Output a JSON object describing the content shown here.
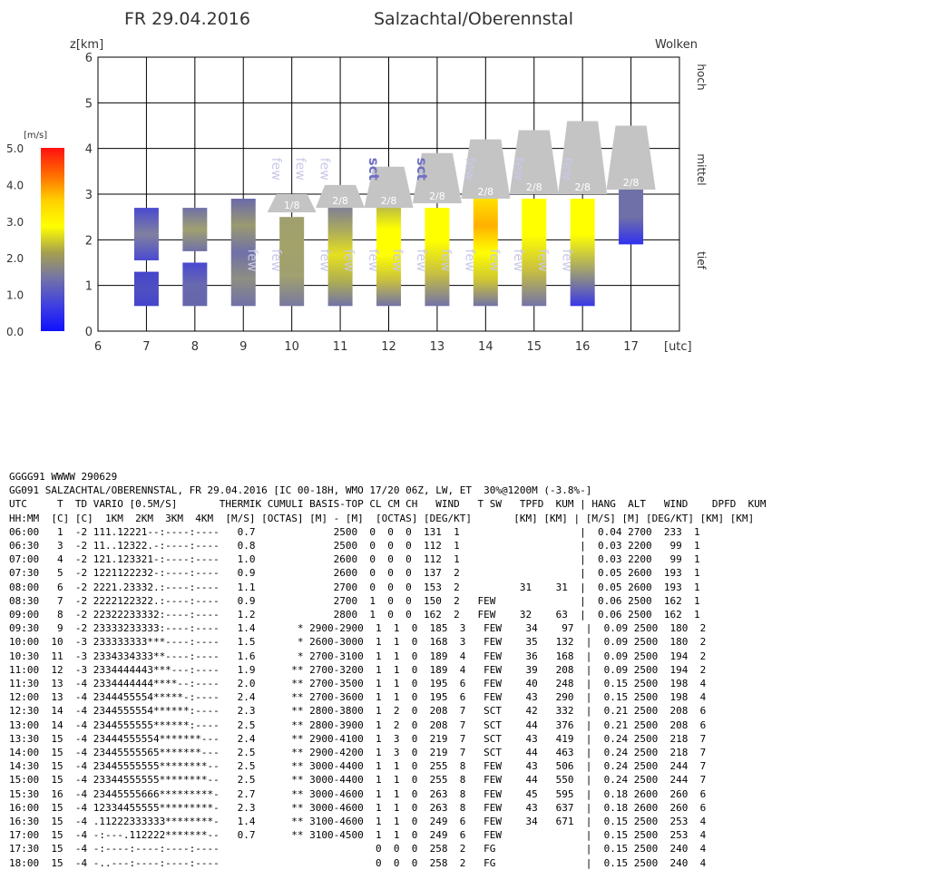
{
  "header": {
    "date": "FR 29.04.2016",
    "location": "Salzachtal/Oberennstal"
  },
  "chart_data": {
    "type": "bar",
    "ylabel": "z[km]",
    "xlabel_unit": "[utc]",
    "right_label": "Wolken",
    "layer_labels": [
      "hoch",
      "mittel",
      "tief"
    ],
    "xlim": [
      6,
      18
    ],
    "ylim": [
      0,
      6
    ],
    "x_ticks": [
      6,
      7,
      8,
      9,
      10,
      11,
      12,
      13,
      14,
      15,
      16,
      17
    ],
    "y_ticks": [
      0,
      1,
      2,
      3,
      4,
      5,
      6
    ],
    "grid": true,
    "colorbar": {
      "unit": "[m/s]",
      "ticks": [
        "5.0",
        "4.0",
        "3.0",
        "2.0",
        "1.0",
        "0.0"
      ],
      "range": [
        0,
        5
      ],
      "colors": [
        "#ff1010",
        "#ff6a00",
        "#ffd000",
        "#ffff00",
        "#a6a050",
        "#7272a8",
        "#4040e0",
        "#1010ff"
      ]
    },
    "thermal_columns": [
      {
        "x": 7,
        "segments": [
          {
            "bottom": 0.55,
            "top": 1.3,
            "colors": [
              "#4444cc",
              "#5050c0",
              "#4444cc"
            ]
          },
          {
            "bottom": 1.55,
            "top": 2.7,
            "colors": [
              "#4a4ad0",
              "#8080a0",
              "#4a4ad0"
            ]
          }
        ]
      },
      {
        "x": 8,
        "segments": [
          {
            "bottom": 0.55,
            "top": 1.5,
            "colors": [
              "#6666aa",
              "#6868b0",
              "#4848d0"
            ]
          },
          {
            "bottom": 1.75,
            "top": 2.7,
            "colors": [
              "#7070a8",
              "#a0a070",
              "#7070a8"
            ]
          }
        ]
      },
      {
        "x": 9,
        "segments": [
          {
            "bottom": 0.55,
            "top": 2.9,
            "colors": [
              "#7070a8",
              "#8e8e82",
              "#7070a8",
              "#9a9a70",
              "#6a6aaa"
            ]
          }
        ]
      },
      {
        "x": 10,
        "segments": [
          {
            "bottom": 0.55,
            "top": 2.5,
            "colors": [
              "#7878a0",
              "#a0a070",
              "#a2a26a",
              "#a0a070"
            ]
          }
        ]
      },
      {
        "x": 11,
        "segments": [
          {
            "bottom": 0.55,
            "top": 2.8,
            "colors": [
              "#7272a8",
              "#b0b050",
              "#e6e020",
              "#a8a860",
              "#7878a0"
            ]
          }
        ]
      },
      {
        "x": 12,
        "segments": [
          {
            "bottom": 0.55,
            "top": 2.8,
            "colors": [
              "#7272a8",
              "#c8c040",
              "#ffff00",
              "#ffff00",
              "#b0b050"
            ]
          }
        ]
      },
      {
        "x": 13,
        "segments": [
          {
            "bottom": 0.55,
            "top": 2.7,
            "colors": [
              "#7272a8",
              "#c8c040",
              "#ffff00",
              "#ffff00"
            ]
          }
        ]
      },
      {
        "x": 14,
        "segments": [
          {
            "bottom": 0.55,
            "top": 2.9,
            "colors": [
              "#7272a8",
              "#d0c830",
              "#ffff00",
              "#ffb000",
              "#ffe000"
            ]
          }
        ]
      },
      {
        "x": 15,
        "segments": [
          {
            "bottom": 0.55,
            "top": 2.9,
            "colors": [
              "#7272a8",
              "#c8c040",
              "#ffff00",
              "#ffff00"
            ]
          }
        ]
      },
      {
        "x": 16,
        "segments": [
          {
            "bottom": 0.55,
            "top": 2.9,
            "colors": [
              "#3838e8",
              "#a0a070",
              "#ffff00",
              "#ffff00"
            ]
          }
        ]
      },
      {
        "x": 17,
        "segments": [
          {
            "bottom": 1.9,
            "top": 3.1,
            "colors": [
              "#3030f0",
              "#7070a8",
              "#7070a8"
            ]
          }
        ]
      }
    ],
    "clouds": [
      {
        "x": 10,
        "base": 2.6,
        "top": 3.0,
        "label": "1/8"
      },
      {
        "x": 11,
        "base": 2.7,
        "top": 3.2,
        "label": "2/8"
      },
      {
        "x": 12,
        "base": 2.7,
        "top": 3.6,
        "label": "2/8"
      },
      {
        "x": 13,
        "base": 2.8,
        "top": 3.9,
        "label": "2/8"
      },
      {
        "x": 14,
        "base": 2.9,
        "top": 4.2,
        "label": "2/8"
      },
      {
        "x": 15,
        "base": 3.0,
        "top": 4.4,
        "label": "2/8"
      },
      {
        "x": 16,
        "base": 3.0,
        "top": 4.6,
        "label": "2/8"
      },
      {
        "x": 17,
        "base": 3.1,
        "top": 4.5,
        "label": "2/8"
      }
    ],
    "cloud_type_labels": [
      {
        "x": 9.0,
        "y": 1.55,
        "text": "few"
      },
      {
        "x": 9.5,
        "y": 1.55,
        "text": "few"
      },
      {
        "x": 9.5,
        "y": 3.55,
        "text": "few"
      },
      {
        "x": 10.0,
        "y": 3.55,
        "text": "few"
      },
      {
        "x": 10.5,
        "y": 1.55,
        "text": "few"
      },
      {
        "x": 10.5,
        "y": 3.55,
        "text": "few"
      },
      {
        "x": 11.0,
        "y": 1.55,
        "text": "few"
      },
      {
        "x": 11.5,
        "y": 1.55,
        "text": "few"
      },
      {
        "x": 11.5,
        "y": 3.55,
        "text": "sct"
      },
      {
        "x": 12.0,
        "y": 1.55,
        "text": "few"
      },
      {
        "x": 12.5,
        "y": 1.55,
        "text": "few"
      },
      {
        "x": 12.5,
        "y": 3.55,
        "text": "sct"
      },
      {
        "x": 13.0,
        "y": 1.55,
        "text": "few"
      },
      {
        "x": 13.5,
        "y": 1.55,
        "text": "few"
      },
      {
        "x": 13.5,
        "y": 3.55,
        "text": "few"
      },
      {
        "x": 14.0,
        "y": 1.55,
        "text": "few"
      },
      {
        "x": 14.5,
        "y": 1.55,
        "text": "few"
      },
      {
        "x": 14.5,
        "y": 3.55,
        "text": "few"
      },
      {
        "x": 15.0,
        "y": 1.55,
        "text": "few"
      },
      {
        "x": 15.5,
        "y": 1.55,
        "text": "few"
      },
      {
        "x": 15.5,
        "y": 3.55,
        "text": "few"
      }
    ]
  },
  "report": {
    "line1": "GGGG91 WWWW 290629",
    "line2": "GG091 SALZACHTAL/OBERENNSTAL, FR 29.04.2016 [IC 00-18H, WMO 17/20 06Z, LW, ET  30%@1200M (-3.8%-]",
    "header1": "UTC     T  TD VARIO [0.5M/S]       THERMIK CUMULI BASIS-TOP CL CM CH   WIND   T SW   TPFD  KUM | HANG  ALT   WIND    DPFD  KUM",
    "header2": "HH:MM  [C] [C]  1KM  2KM  3KM  4KM  [M/S] [OCTAS] [M] - [M]  [OCTAS] [DEG/KT]       [KM] [KM] | [M/S] [M] [DEG/KT] [KM] [KM]",
    "rows": [
      "06:00   1  -2 111.12221--:----:----   0.7             2500  0  0  0  131  1                    |  0.04 2700  233  1",
      "06:30   3  -2 11..12322.-:----:----   0.8             2500  0  0  0  112  1                    |  0.03 2200   99  1",
      "07:00   4  -2 121.123321-:----:----   1.0             2600  0  0  0  112  1                    |  0.03 2200   99  1",
      "07:30   5  -2 1221122232-:----:----   0.9             2600  0  0  0  137  2                    |  0.05 2600  193  1",
      "08:00   6  -2 2221.23332.:----:----   1.1             2700  0  0  0  153  2          31    31  |  0.05 2600  193  1",
      "08:30   7  -2 2222122322.:----:----   0.9             2700  1  0  0  150  2   FEW              |  0.06 2500  162  1",
      "09:00   8  -2 22322233332:----:----   1.2             2800  1  0  0  162  2   FEW    32    63  |  0.06 2500  162  1",
      "09:30   9  -2 23333233333:----:----   1.4       * 2900-2900  1  1  0  185  3   FEW    34    97  |  0.09 2500  180  2",
      "10:00  10  -3 233333333***----:----   1.5       * 2600-3000  1  1  0  168  3   FEW    35   132  |  0.09 2500  180  2",
      "10:30  11  -3 2334334333**----:----   1.6       * 2700-3100  1  1  0  189  4   FEW    36   168  |  0.09 2500  194  2",
      "11:00  12  -3 2334444443***---:----   1.9      ** 2700-3200  1  1  0  189  4   FEW    39   208  |  0.09 2500  194  2",
      "11:30  13  -4 2334444444****--:----   2.0      ** 2700-3500  1  1  0  195  6   FEW    40   248  |  0.15 2500  198  4",
      "12:00  13  -4 2344455554*****-:----   2.4      ** 2700-3600  1  1  0  195  6   FEW    43   290  |  0.15 2500  198  4",
      "12:30  14  -4 2344555554******:----   2.3      ** 2800-3800  1  2  0  208  7   SCT    42   332  |  0.21 2500  208  6",
      "13:00  14  -4 2344555555******:----   2.5      ** 2800-3900  1  2  0  208  7   SCT    44   376  |  0.21 2500  208  6",
      "13:30  15  -4 23444555554*******---   2.4      ** 2900-4100  1  3  0  219  7   SCT    43   419  |  0.24 2500  218  7",
      "14:00  15  -4 23445555565*******---   2.5      ** 2900-4200  1  3  0  219  7   SCT    44   463  |  0.24 2500  218  7",
      "14:30  15  -4 23445555555********--   2.5      ** 3000-4400  1  1  0  255  8   FEW    43   506  |  0.24 2500  244  7",
      "15:00  15  -4 23344555555********--   2.5      ** 3000-4400  1  1  0  255  8   FEW    44   550  |  0.24 2500  244  7",
      "15:30  16  -4 23445555666*********-   2.7      ** 3000-4600  1  1  0  263  8   FEW    45   595  |  0.18 2600  260  6",
      "16:00  15  -4 12334455555*********-   2.3      ** 3000-4600  1  1  0  263  8   FEW    43   637  |  0.18 2600  260  6",
      "16:30  15  -4 .11222333333********-   1.4      ** 3100-4600  1  1  0  249  6   FEW    34   671  |  0.15 2500  253  4",
      "17:00  15  -4 -:---.112222*******--   0.7      ** 3100-4500  1  1  0  249  6   FEW              |  0.15 2500  253  4",
      "17:30  15  -4 -:----:----:----:----                          0  0  0  258  2   FG               |  0.15 2500  240  4",
      "18:00  15  -4 -..---:----:----:----                          0  0  0  258  2   FG               |  0.15 2500  240  4"
    ]
  }
}
